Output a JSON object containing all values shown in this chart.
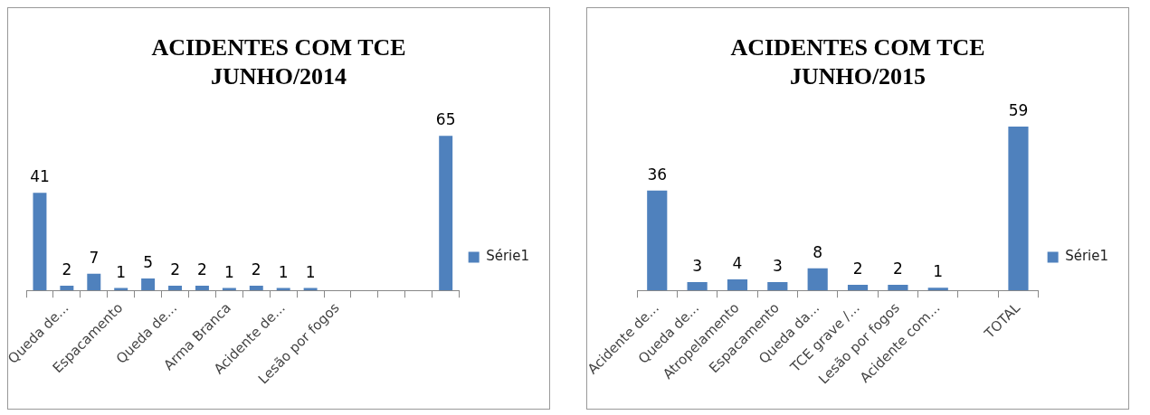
{
  "chart_data": [
    {
      "type": "bar",
      "title": "ACIDENTES COM TCE JUNHO/2014",
      "categories": [
        null,
        "Queda de...",
        null,
        "Espacamento",
        null,
        "Queda de...",
        null,
        "Arma Branca",
        null,
        "Acidente de...",
        null,
        "Lesão por fogos",
        null,
        null,
        null,
        null
      ],
      "series": [
        {
          "name": "Série1",
          "color": "#4f81bd",
          "values": [
            41,
            2,
            7,
            1,
            5,
            2,
            2,
            1,
            2,
            1,
            1,
            null,
            null,
            null,
            null,
            65
          ]
        }
      ],
      "data_labels": true,
      "legend": "right",
      "grid": false
    },
    {
      "type": "bar",
      "title": "ACIDENTES COM TCE JUNHO/2015",
      "categories": [
        "Acidente de...",
        "Queda de...",
        "Atropelamento",
        "Espacamento",
        "Queda da...",
        "TCE grave /...",
        "Lesão por fogos",
        "Acidente com...",
        null,
        "TOTAL"
      ],
      "series": [
        {
          "name": "Série1",
          "color": "#4f81bd",
          "values": [
            36,
            3,
            4,
            3,
            8,
            2,
            2,
            1,
            null,
            59
          ]
        }
      ],
      "data_labels": true,
      "legend": "right",
      "grid": false
    }
  ]
}
